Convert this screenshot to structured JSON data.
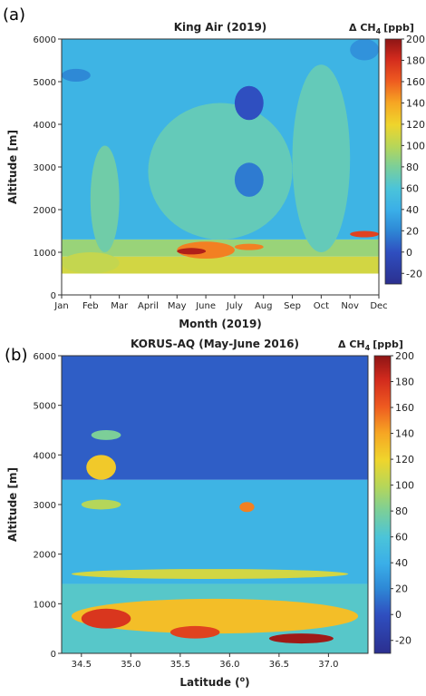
{
  "chart_data": [
    {
      "panel": "(a)",
      "type": "heatmap",
      "title": "King Air (2019)",
      "xlabel": "Month (2019)",
      "ylabel": "Altitude [m]",
      "x_ticks": [
        "Jan",
        "Feb",
        "Mar",
        "April",
        "May",
        "June",
        "July",
        "Aug",
        "Sep",
        "Oct",
        "Nov",
        "Dec"
      ],
      "y_ticks": [
        0,
        1000,
        2000,
        3000,
        4000,
        5000,
        6000
      ],
      "ylim": [
        0,
        6000
      ],
      "colorbar": {
        "title": "Δ CH",
        "title_sub": "4",
        "title_unit": "[ppb]",
        "ticks": [
          200,
          180,
          160,
          140,
          120,
          100,
          80,
          60,
          40,
          20,
          0,
          -20
        ],
        "range": [
          -30,
          200
        ]
      },
      "bands": [
        {
          "altitude_min": 500,
          "altitude_max": 900,
          "delta_ch4": 110
        },
        {
          "altitude_min": 900,
          "altitude_max": 1300,
          "delta_ch4": 90
        },
        {
          "altitude_min": 1300,
          "altitude_max": 6000,
          "delta_ch4": 45
        }
      ],
      "features": [
        {
          "month_start": "Jan",
          "month_end": "Mar",
          "altitude_min": 500,
          "altitude_max": 1000,
          "delta_ch4": 105
        },
        {
          "month_start": "Feb",
          "month_end": "Mar",
          "altitude_min": 1000,
          "altitude_max": 3500,
          "delta_ch4": 75
        },
        {
          "month_start": "April",
          "month_end": "Sep",
          "altitude_min": 1300,
          "altitude_max": 4500,
          "delta_ch4": 70
        },
        {
          "month_start": "Sep",
          "month_end": "Nov",
          "altitude_min": 1000,
          "altitude_max": 5400,
          "delta_ch4": 70
        },
        {
          "month_start": "May",
          "month_end": "July",
          "altitude_min": 850,
          "altitude_max": 1250,
          "delta_ch4": 150
        },
        {
          "month_start": "May",
          "month_end": "June",
          "altitude_min": 950,
          "altitude_max": 1100,
          "delta_ch4": 190
        },
        {
          "month_start": "July",
          "month_end": "Aug",
          "altitude_min": 1050,
          "altitude_max": 1200,
          "delta_ch4": 150
        },
        {
          "month_start": "July",
          "month_end": "Aug",
          "altitude_min": 4100,
          "altitude_max": 4900,
          "delta_ch4": 0
        },
        {
          "month_start": "July",
          "month_end": "Aug",
          "altitude_min": 2300,
          "altitude_max": 3100,
          "delta_ch4": 15
        },
        {
          "month_start": "Jan",
          "month_end": "Feb",
          "altitude_min": 5000,
          "altitude_max": 5300,
          "delta_ch4": 20
        },
        {
          "month_start": "Nov",
          "month_end": "Dec",
          "altitude_min": 5500,
          "altitude_max": 6000,
          "delta_ch4": 25
        },
        {
          "month_start": "Nov",
          "month_end": "Dec",
          "altitude_min": 1350,
          "altitude_max": 1500,
          "delta_ch4": 170
        }
      ]
    },
    {
      "panel": "(b)",
      "type": "heatmap",
      "title": "KORUS-AQ (May-June 2016)",
      "xlabel": "Latitude (",
      "xlabel_sup": "o",
      "xlabel_end": ")",
      "ylabel": "Altitude [m]",
      "x_ticks": [
        34.5,
        35.0,
        35.5,
        36.0,
        36.5,
        37.0
      ],
      "x_tick_labels": [
        "34.5",
        "35.0",
        "35.5",
        "36.0",
        "36.5",
        "37.0"
      ],
      "xlim": [
        34.3,
        37.4
      ],
      "y_ticks": [
        0,
        1000,
        2000,
        3000,
        4000,
        5000,
        6000
      ],
      "ylim": [
        0,
        6000
      ],
      "colorbar": {
        "title": "Δ CH",
        "title_sub": "4",
        "title_unit": "[ppb]",
        "ticks": [
          200,
          180,
          160,
          140,
          120,
          100,
          80,
          60,
          40,
          20,
          0,
          -20
        ],
        "range": [
          -30,
          200
        ]
      },
      "bands": [
        {
          "altitude_min": 0,
          "altitude_max": 1400,
          "delta_ch4": 65
        },
        {
          "altitude_min": 1400,
          "altitude_max": 3500,
          "delta_ch4": 45
        },
        {
          "altitude_min": 3500,
          "altitude_max": 6000,
          "delta_ch4": 5
        }
      ],
      "features": [
        {
          "lat_min": 34.55,
          "lat_max": 34.85,
          "altitude_min": 3500,
          "altitude_max": 4000,
          "delta_ch4": 125
        },
        {
          "lat_min": 34.5,
          "lat_max": 34.9,
          "altitude_min": 2900,
          "altitude_max": 3100,
          "delta_ch4": 100
        },
        {
          "lat_min": 36.1,
          "lat_max": 36.25,
          "altitude_min": 2850,
          "altitude_max": 3050,
          "delta_ch4": 150
        },
        {
          "lat_min": 34.4,
          "lat_max": 37.2,
          "altitude_min": 1500,
          "altitude_max": 1700,
          "delta_ch4": 110
        },
        {
          "lat_min": 34.4,
          "lat_max": 37.3,
          "altitude_min": 400,
          "altitude_max": 1100,
          "delta_ch4": 130
        },
        {
          "lat_min": 34.5,
          "lat_max": 35.0,
          "altitude_min": 500,
          "altitude_max": 900,
          "delta_ch4": 175
        },
        {
          "lat_min": 36.4,
          "lat_max": 37.05,
          "altitude_min": 200,
          "altitude_max": 400,
          "delta_ch4": 195
        },
        {
          "lat_min": 35.4,
          "lat_max": 35.9,
          "altitude_min": 300,
          "altitude_max": 550,
          "delta_ch4": 170
        },
        {
          "lat_min": 34.6,
          "lat_max": 34.9,
          "altitude_min": 4300,
          "altitude_max": 4500,
          "delta_ch4": 80
        }
      ]
    }
  ]
}
